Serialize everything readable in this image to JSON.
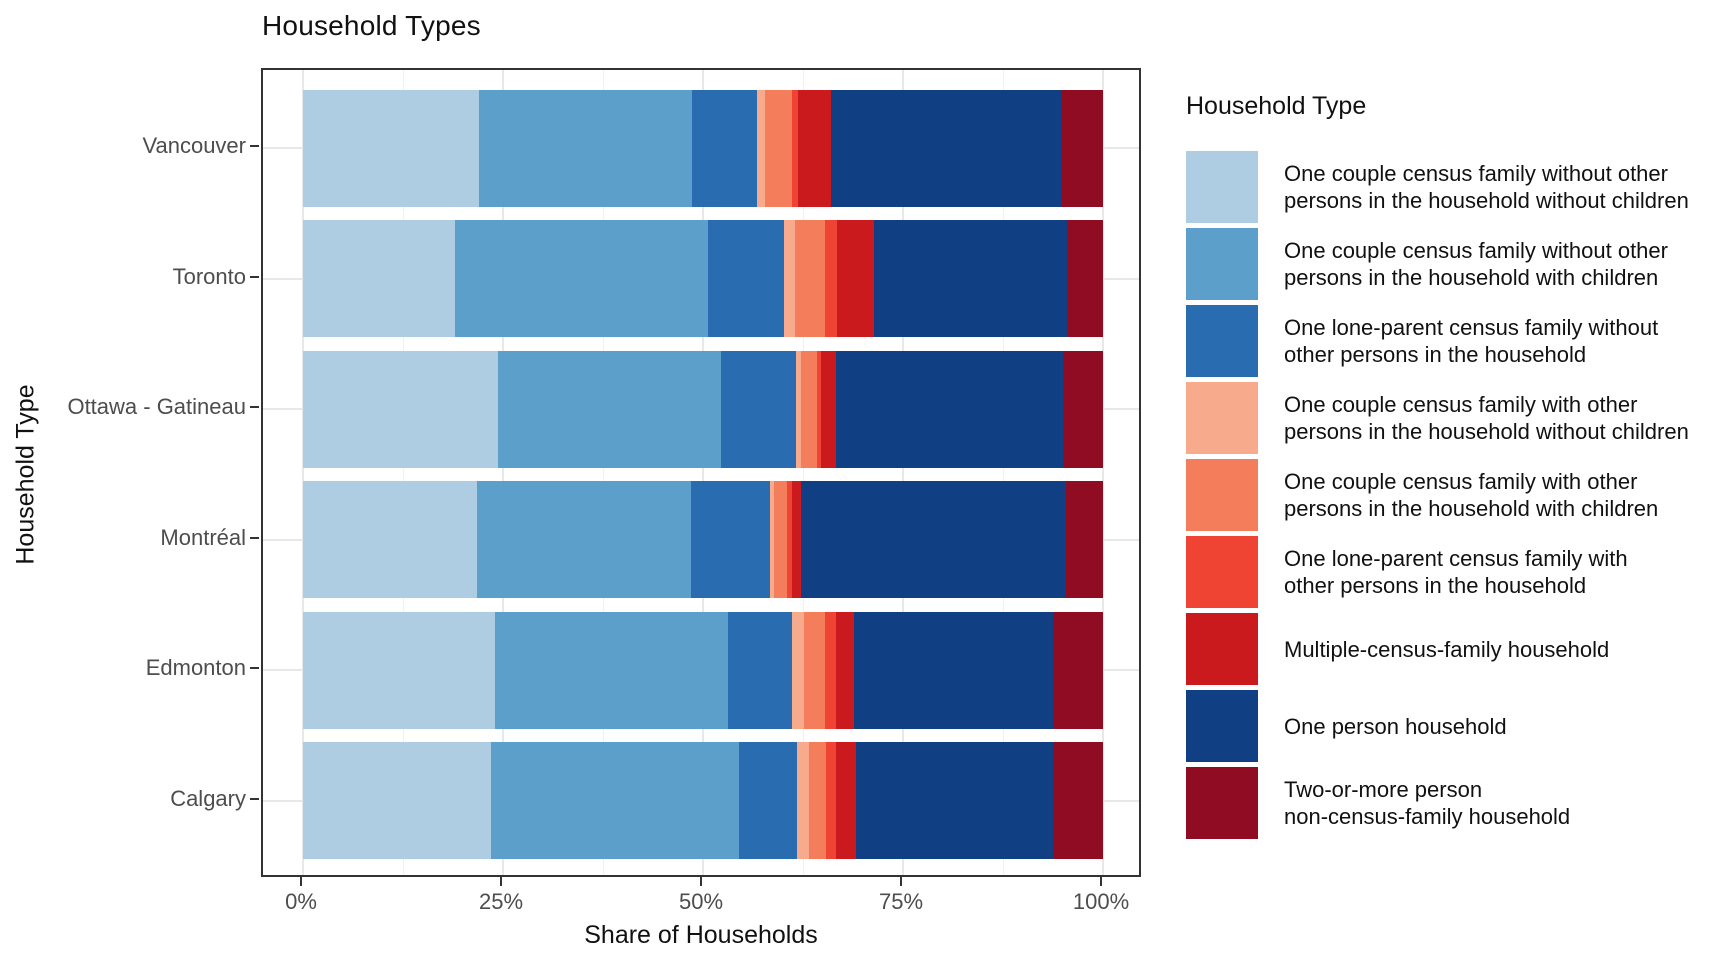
{
  "title": "Household Types",
  "axes": {
    "x_label": "Share of Households",
    "y_label": "Household Type",
    "x_ticks": [
      {
        "value": 0,
        "label": "0%"
      },
      {
        "value": 25,
        "label": "25%"
      },
      {
        "value": 50,
        "label": "50%"
      },
      {
        "value": 75,
        "label": "75%"
      },
      {
        "value": 100,
        "label": "100%"
      }
    ],
    "x_minor_values": [
      12.5,
      37.5,
      62.5,
      87.5
    ]
  },
  "legend": {
    "title": "Household Type"
  },
  "chart_data": {
    "type": "bar",
    "orientation": "horizontal",
    "stacked": true,
    "title": "Household Types",
    "xlabel": "Share of Households",
    "ylabel": "Household Type",
    "xlim": [
      0,
      100
    ],
    "grid": true,
    "legend_position": "right",
    "categories": [
      "Vancouver",
      "Toronto",
      "Ottawa - Gatineau",
      "Montréal",
      "Edmonton",
      "Calgary"
    ],
    "series": [
      {
        "name": "One couple census family without other\npersons in the household without children",
        "color": "#aecde2",
        "values": [
          22.0,
          19.0,
          24.4,
          21.8,
          24.0,
          23.5
        ]
      },
      {
        "name": "One couple census family without other\npersons in the household with children",
        "color": "#5c9fca",
        "values": [
          26.6,
          31.6,
          27.8,
          26.7,
          29.1,
          31.0
        ]
      },
      {
        "name": "One lone-parent census family without\nother persons in the household",
        "color": "#2a6cb0",
        "values": [
          8.1,
          9.5,
          9.4,
          9.9,
          8.0,
          7.2
        ]
      },
      {
        "name": "One couple census family with other\npersons in the household without children",
        "color": "#f7ab8c",
        "values": [
          1.1,
          1.4,
          0.6,
          0.5,
          1.5,
          1.5
        ]
      },
      {
        "name": "One couple census family with other\npersons in the household with children",
        "color": "#f47e5c",
        "values": [
          3.3,
          3.8,
          2.1,
          1.6,
          2.6,
          2.2
        ]
      },
      {
        "name": "One lone-parent census family with\nother persons in the household",
        "color": "#ef4433",
        "values": [
          0.8,
          1.4,
          0.5,
          0.6,
          1.4,
          1.2
        ]
      },
      {
        "name": "Multiple-census-family household",
        "color": "#cb1a1d",
        "values": [
          4.1,
          4.7,
          1.8,
          1.1,
          2.3,
          2.5
        ]
      },
      {
        "name": "One person household",
        "color": "#113f83",
        "values": [
          28.7,
          24.1,
          28.4,
          33.2,
          24.8,
          24.6
        ]
      },
      {
        "name": "Two-or-more person\nnon-census-family household",
        "color": "#900c22",
        "values": [
          5.3,
          4.5,
          5.0,
          4.6,
          6.3,
          6.3
        ]
      }
    ]
  }
}
